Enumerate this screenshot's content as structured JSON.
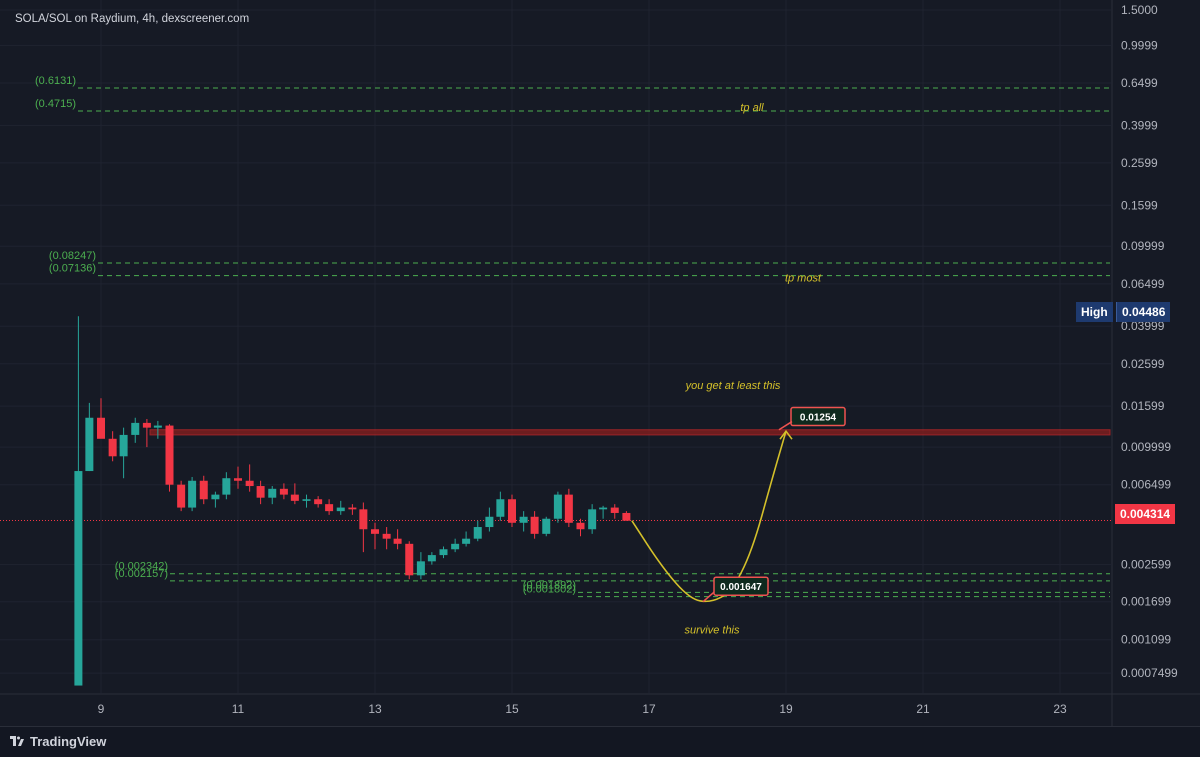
{
  "header": {
    "title": "SOLA/SOL on Raydium, 4h, dexscreener.com"
  },
  "footer": {
    "brand": "TradingView"
  },
  "price_scale": {
    "ticks": [
      "1.5000",
      "0.9999",
      "0.6499",
      "0.3999",
      "0.2599",
      "0.1599",
      "0.09999",
      "0.06499",
      "0.03999",
      "0.02599",
      "0.01599",
      "0.009999",
      "0.006499",
      "0.004314",
      "0.002599",
      "0.001699",
      "0.001099",
      "0.0007499"
    ],
    "high_label": "High",
    "high_value": "0.04486",
    "current_value": "0.004314"
  },
  "time_axis": {
    "ticks": [
      "9",
      "11",
      "13",
      "15",
      "17",
      "19",
      "21",
      "23"
    ]
  },
  "colors": {
    "bull": "#26a69a",
    "bear": "#f23645",
    "level": "#4caf50",
    "accent": "#d4c02a",
    "resistance": "#8b1e1e"
  },
  "levels": [
    {
      "label": "(0.6131)"
    },
    {
      "label": "(0.4715)"
    },
    {
      "label": "(0.08247)"
    },
    {
      "label": "(0.07136)"
    },
    {
      "label": "(0.002342)"
    },
    {
      "label": "(0.002157)"
    },
    {
      "label": "(0.001892)"
    },
    {
      "label": "(0.001802)"
    }
  ],
  "annotations": {
    "tp_all": "tp all",
    "tp_most": "tp most",
    "get_least": "you get at least this",
    "survive": "survive this",
    "target_box": "0.01254",
    "dip_box": "0.001647"
  },
  "chart_data": {
    "type": "candlestick",
    "title": "SOLA/SOL on Raydium, 4h, dexscreener.com",
    "y_scale": "log",
    "x_unit": "day",
    "ylim": [
      0.0006,
      1.5
    ],
    "xlim": [
      8.0,
      24.0
    ],
    "candles": [
      {
        "t": 8.67,
        "o": 0.00065,
        "h": 0.0448,
        "l": 0.00065,
        "c": 0.0076
      },
      {
        "t": 8.83,
        "o": 0.0076,
        "h": 0.0166,
        "l": 0.0076,
        "c": 0.014
      },
      {
        "t": 9.0,
        "o": 0.014,
        "h": 0.0175,
        "l": 0.0112,
        "c": 0.011
      },
      {
        "t": 9.17,
        "o": 0.011,
        "h": 0.012,
        "l": 0.0085,
        "c": 0.009
      },
      {
        "t": 9.33,
        "o": 0.009,
        "h": 0.0125,
        "l": 0.007,
        "c": 0.0115
      },
      {
        "t": 9.5,
        "o": 0.0115,
        "h": 0.014,
        "l": 0.0105,
        "c": 0.0132
      },
      {
        "t": 9.67,
        "o": 0.0132,
        "h": 0.0138,
        "l": 0.01,
        "c": 0.0125
      },
      {
        "t": 9.83,
        "o": 0.0125,
        "h": 0.0135,
        "l": 0.011,
        "c": 0.0128
      },
      {
        "t": 10.0,
        "o": 0.0128,
        "h": 0.013,
        "l": 0.006,
        "c": 0.0065
      },
      {
        "t": 10.17,
        "o": 0.0065,
        "h": 0.0068,
        "l": 0.0048,
        "c": 0.005
      },
      {
        "t": 10.33,
        "o": 0.005,
        "h": 0.0071,
        "l": 0.0048,
        "c": 0.0068
      },
      {
        "t": 10.5,
        "o": 0.0068,
        "h": 0.0072,
        "l": 0.0052,
        "c": 0.0055
      },
      {
        "t": 10.67,
        "o": 0.0055,
        "h": 0.006,
        "l": 0.005,
        "c": 0.0058
      },
      {
        "t": 10.83,
        "o": 0.0058,
        "h": 0.0075,
        "l": 0.0055,
        "c": 0.007
      },
      {
        "t": 11.0,
        "o": 0.007,
        "h": 0.008,
        "l": 0.0062,
        "c": 0.0068
      },
      {
        "t": 11.17,
        "o": 0.0068,
        "h": 0.0082,
        "l": 0.006,
        "c": 0.0064
      },
      {
        "t": 11.33,
        "o": 0.0064,
        "h": 0.0068,
        "l": 0.0052,
        "c": 0.0056
      },
      {
        "t": 11.5,
        "o": 0.0056,
        "h": 0.0064,
        "l": 0.0052,
        "c": 0.0062
      },
      {
        "t": 11.67,
        "o": 0.0062,
        "h": 0.0066,
        "l": 0.0055,
        "c": 0.0058
      },
      {
        "t": 11.83,
        "o": 0.0058,
        "h": 0.0066,
        "l": 0.0052,
        "c": 0.0054
      },
      {
        "t": 12.0,
        "o": 0.0054,
        "h": 0.0058,
        "l": 0.005,
        "c": 0.0055
      },
      {
        "t": 12.17,
        "o": 0.0055,
        "h": 0.0057,
        "l": 0.005,
        "c": 0.0052
      },
      {
        "t": 12.33,
        "o": 0.0052,
        "h": 0.0055,
        "l": 0.0046,
        "c": 0.0048
      },
      {
        "t": 12.5,
        "o": 0.0048,
        "h": 0.0054,
        "l": 0.0046,
        "c": 0.005
      },
      {
        "t": 12.67,
        "o": 0.005,
        "h": 0.0052,
        "l": 0.0046,
        "c": 0.0049
      },
      {
        "t": 12.83,
        "o": 0.0049,
        "h": 0.0053,
        "l": 0.003,
        "c": 0.0039
      },
      {
        "t": 13.0,
        "o": 0.0039,
        "h": 0.0042,
        "l": 0.0031,
        "c": 0.0037
      },
      {
        "t": 13.17,
        "o": 0.0037,
        "h": 0.004,
        "l": 0.0031,
        "c": 0.0035
      },
      {
        "t": 13.33,
        "o": 0.0035,
        "h": 0.0039,
        "l": 0.0031,
        "c": 0.0033
      },
      {
        "t": 13.5,
        "o": 0.0033,
        "h": 0.0034,
        "l": 0.0022,
        "c": 0.0023
      },
      {
        "t": 13.67,
        "o": 0.0023,
        "h": 0.003,
        "l": 0.0022,
        "c": 0.0027
      },
      {
        "t": 13.83,
        "o": 0.0027,
        "h": 0.003,
        "l": 0.0026,
        "c": 0.0029
      },
      {
        "t": 14.0,
        "o": 0.0029,
        "h": 0.0032,
        "l": 0.0028,
        "c": 0.0031
      },
      {
        "t": 14.17,
        "o": 0.0031,
        "h": 0.0035,
        "l": 0.003,
        "c": 0.0033
      },
      {
        "t": 14.33,
        "o": 0.0033,
        "h": 0.0038,
        "l": 0.0032,
        "c": 0.0035
      },
      {
        "t": 14.5,
        "o": 0.0035,
        "h": 0.0043,
        "l": 0.0034,
        "c": 0.004
      },
      {
        "t": 14.67,
        "o": 0.004,
        "h": 0.005,
        "l": 0.0038,
        "c": 0.0045
      },
      {
        "t": 14.83,
        "o": 0.0045,
        "h": 0.006,
        "l": 0.0043,
        "c": 0.0055
      },
      {
        "t": 15.0,
        "o": 0.0055,
        "h": 0.0058,
        "l": 0.004,
        "c": 0.0042
      },
      {
        "t": 15.17,
        "o": 0.0042,
        "h": 0.0048,
        "l": 0.0038,
        "c": 0.0045
      },
      {
        "t": 15.33,
        "o": 0.0045,
        "h": 0.0048,
        "l": 0.0035,
        "c": 0.0037
      },
      {
        "t": 15.5,
        "o": 0.0037,
        "h": 0.0045,
        "l": 0.0036,
        "c": 0.0044
      },
      {
        "t": 15.67,
        "o": 0.0044,
        "h": 0.006,
        "l": 0.0042,
        "c": 0.0058
      },
      {
        "t": 15.83,
        "o": 0.0058,
        "h": 0.0062,
        "l": 0.004,
        "c": 0.0042
      },
      {
        "t": 16.0,
        "o": 0.0042,
        "h": 0.0044,
        "l": 0.0036,
        "c": 0.0039
      },
      {
        "t": 16.17,
        "o": 0.0039,
        "h": 0.0052,
        "l": 0.0037,
        "c": 0.0049
      },
      {
        "t": 16.33,
        "o": 0.0049,
        "h": 0.0051,
        "l": 0.0044,
        "c": 0.005
      },
      {
        "t": 16.5,
        "o": 0.005,
        "h": 0.0052,
        "l": 0.0044,
        "c": 0.0047
      },
      {
        "t": 16.67,
        "o": 0.0047,
        "h": 0.0048,
        "l": 0.0043,
        "c": 0.0043
      }
    ],
    "horizontal_levels": [
      0.6131,
      0.4715,
      0.08247,
      0.07136,
      0.002342,
      0.002157,
      0.001892,
      0.001802
    ],
    "resistance_zone": [
      0.0115,
      0.0122
    ],
    "current_price": 0.004314,
    "projection": [
      {
        "t": 16.75,
        "v": 0.0043
      },
      {
        "t": 17.2,
        "v": 0.0025
      },
      {
        "t": 17.6,
        "v": 0.00175
      },
      {
        "t": 17.9,
        "v": 0.00168
      },
      {
        "t": 18.2,
        "v": 0.0019
      },
      {
        "t": 18.5,
        "v": 0.003
      },
      {
        "t": 18.8,
        "v": 0.007
      },
      {
        "t": 19.0,
        "v": 0.012
      }
    ]
  }
}
